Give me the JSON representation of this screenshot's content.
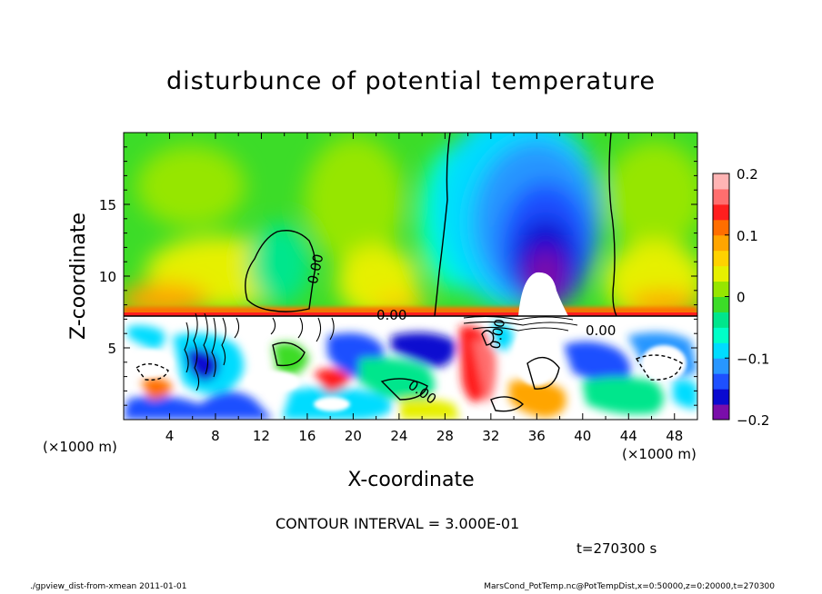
{
  "chart_data": {
    "type": "heatmap",
    "title": "disturbunce of potential temperature",
    "xlabel": "X-coordinate",
    "ylabel": "Z-coordinate",
    "x_unit": "(×1000 m)",
    "y_unit": "(×1000 m)",
    "xlim": [
      0,
      50
    ],
    "ylim": [
      0,
      20
    ],
    "x_ticks": [
      4,
      8,
      12,
      16,
      20,
      24,
      28,
      32,
      36,
      40,
      44,
      48
    ],
    "y_ticks": [
      5,
      10,
      15
    ],
    "colorbar": {
      "ticks": [
        0.2,
        0.1,
        0,
        -0.1,
        -0.2
      ],
      "tick_labels": [
        "0.2",
        "0.1",
        "0",
        "−0.1",
        "−0.2"
      ],
      "range": [
        -0.2,
        0.2
      ],
      "colors": [
        "#7a0eaa",
        "#0a0ad0",
        "#1e50ff",
        "#2896ff",
        "#00dcff",
        "#00ffc8",
        "#00e68c",
        "#3cdc28",
        "#96e600",
        "#e6f000",
        "#ffd200",
        "#ffa500",
        "#ff6e00",
        "#ff1e1e",
        "#ff6e6e",
        "#ffb4b4"
      ]
    },
    "contour_labels": [
      "0.00",
      "0.00",
      "0.00",
      "0.00",
      "0.00"
    ],
    "contour_interval_label": "CONTOUR INTERVAL = 3.000E-01",
    "time_label": "t=270300 s"
  },
  "footer": {
    "left": "./gpview_dist-from-xmean  2011-01-01",
    "right": "MarsCond_PotTemp.nc@PotTempDist,x=0:50000,z=0:20000,t=270300"
  }
}
